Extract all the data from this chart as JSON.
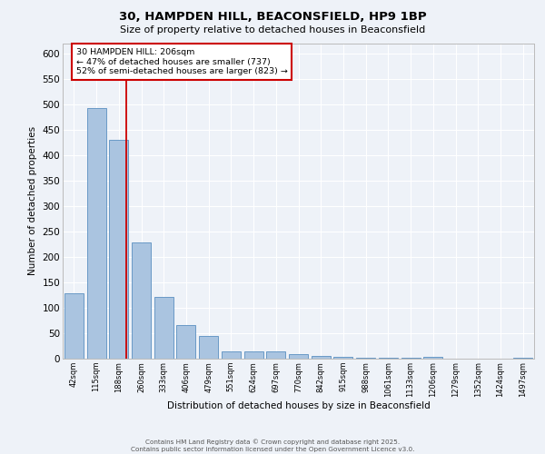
{
  "title_line1": "30, HAMPDEN HILL, BEACONSFIELD, HP9 1BP",
  "title_line2": "Size of property relative to detached houses in Beaconsfield",
  "xlabel": "Distribution of detached houses by size in Beaconsfield",
  "ylabel": "Number of detached properties",
  "categories": [
    "42sqm",
    "115sqm",
    "188sqm",
    "260sqm",
    "333sqm",
    "406sqm",
    "479sqm",
    "551sqm",
    "624sqm",
    "697sqm",
    "770sqm",
    "842sqm",
    "915sqm",
    "988sqm",
    "1061sqm",
    "1133sqm",
    "1206sqm",
    "1279sqm",
    "1352sqm",
    "1424sqm",
    "1497sqm"
  ],
  "values": [
    128,
    493,
    430,
    228,
    122,
    66,
    44,
    14,
    14,
    15,
    9,
    5,
    4,
    1,
    1,
    1,
    4,
    0,
    0,
    0,
    2
  ],
  "bar_color": "#aac4e0",
  "bar_edge_color": "#5a8fc0",
  "property_label": "30 HAMPDEN HILL: 206sqm",
  "vline_x_index": 2.35,
  "annotation_line1": "← 47% of detached houses are smaller (737)",
  "annotation_line2": "52% of semi-detached houses are larger (823) →",
  "vline_color": "#cc0000",
  "annotation_box_edge": "#cc0000",
  "background_color": "#eef2f8",
  "grid_color": "#ffffff",
  "footer_line1": "Contains HM Land Registry data © Crown copyright and database right 2025.",
  "footer_line2": "Contains public sector information licensed under the Open Government Licence v3.0.",
  "ylim": [
    0,
    620
  ],
  "yticks": [
    0,
    50,
    100,
    150,
    200,
    250,
    300,
    350,
    400,
    450,
    500,
    550,
    600
  ]
}
